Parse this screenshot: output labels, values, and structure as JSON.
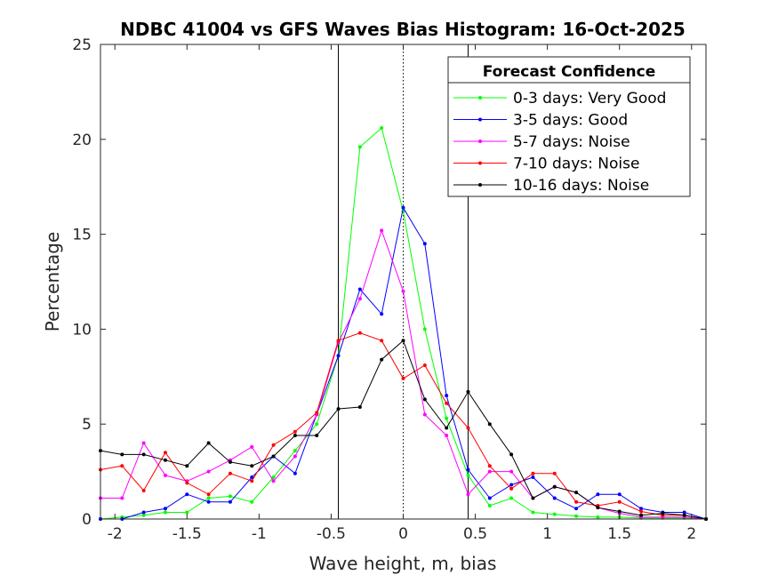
{
  "chart_data": {
    "type": "line",
    "title": "NDBC 41004 vs GFS Waves Bias Histogram: 16-Oct-2025",
    "xlabel": "Wave height, m, bias",
    "ylabel": "Percentage",
    "xlim": [
      -2.1,
      2.1
    ],
    "ylim": [
      0,
      25
    ],
    "xticks": [
      -2,
      -1.5,
      -1,
      -0.5,
      0,
      0.5,
      1,
      1.5,
      2
    ],
    "xtick_labels": [
      "-2",
      "-1.5",
      "-1",
      "-0.5",
      "0",
      "0.5",
      "1",
      "1.5",
      "2"
    ],
    "yticks": [
      0,
      5,
      10,
      15,
      20,
      25
    ],
    "ytick_labels": [
      "0",
      "5",
      "10",
      "15",
      "20",
      "25"
    ],
    "grid": false,
    "vertical_lines": [
      {
        "x": -0.45,
        "style": "solid"
      },
      {
        "x": 0,
        "style": "dotted"
      },
      {
        "x": 0.45,
        "style": "solid"
      }
    ],
    "legend": {
      "title": "Forecast Confidence",
      "position": "top-right"
    },
    "x": [
      -2.1,
      -1.95,
      -1.8,
      -1.65,
      -1.5,
      -1.35,
      -1.2,
      -1.05,
      -0.9,
      -0.75,
      -0.6,
      -0.45,
      -0.3,
      -0.15,
      0,
      0.15,
      0.3,
      0.45,
      0.6,
      0.75,
      0.9,
      1.05,
      1.2,
      1.35,
      1.5,
      1.65,
      1.8,
      1.95,
      2.1
    ],
    "series": [
      {
        "name": "0-3 days: Very Good",
        "color": "#00ff00",
        "values": [
          0,
          0.1,
          0.2,
          0.35,
          0.35,
          1.1,
          1.2,
          0.9,
          2.2,
          3.6,
          5.0,
          8.6,
          19.6,
          20.6,
          16.2,
          10.0,
          5.3,
          2.3,
          0.7,
          1.1,
          0.35,
          0.25,
          0.15,
          0.1,
          0.1,
          0.05,
          0.05,
          0.05,
          0
        ]
      },
      {
        "name": "3-5 days: Good",
        "color": "#0000ff",
        "values": [
          0,
          0,
          0.35,
          0.55,
          1.3,
          0.9,
          0.9,
          2.2,
          3.3,
          2.4,
          5.5,
          8.6,
          12.1,
          10.8,
          16.4,
          14.5,
          6.5,
          2.6,
          1.1,
          1.8,
          2.2,
          1.1,
          0.55,
          1.3,
          1.3,
          0.55,
          0.35,
          0.35,
          0
        ]
      },
      {
        "name": "5-7 days: Noise",
        "color": "#ff00ff",
        "values": [
          1.1,
          1.1,
          4.0,
          2.3,
          2.0,
          2.5,
          3.1,
          3.8,
          2.0,
          3.3,
          5.5,
          9.3,
          11.6,
          15.2,
          12.0,
          5.5,
          4.4,
          1.3,
          2.5,
          2.5,
          1.1,
          1.7,
          1.4,
          0.6,
          0.3,
          0.1,
          0.1,
          0.1,
          0
        ]
      },
      {
        "name": "7-10 days: Noise",
        "color": "#ff0000",
        "values": [
          2.6,
          2.8,
          1.5,
          3.5,
          1.9,
          1.3,
          2.4,
          2.0,
          3.9,
          4.6,
          5.6,
          9.4,
          9.8,
          9.4,
          7.4,
          8.1,
          6.1,
          4.8,
          2.8,
          1.6,
          2.4,
          2.4,
          0.9,
          0.7,
          0.9,
          0.4,
          0.2,
          0.2,
          0
        ]
      },
      {
        "name": "10-16 days: Noise",
        "color": "#000000",
        "values": [
          3.6,
          3.4,
          3.4,
          3.1,
          2.8,
          4.0,
          3.0,
          2.8,
          3.3,
          4.4,
          4.4,
          5.8,
          5.9,
          8.4,
          9.4,
          6.3,
          4.8,
          6.7,
          5.0,
          3.4,
          1.1,
          1.7,
          1.4,
          0.6,
          0.4,
          0.2,
          0.3,
          0.2,
          0
        ]
      }
    ]
  }
}
